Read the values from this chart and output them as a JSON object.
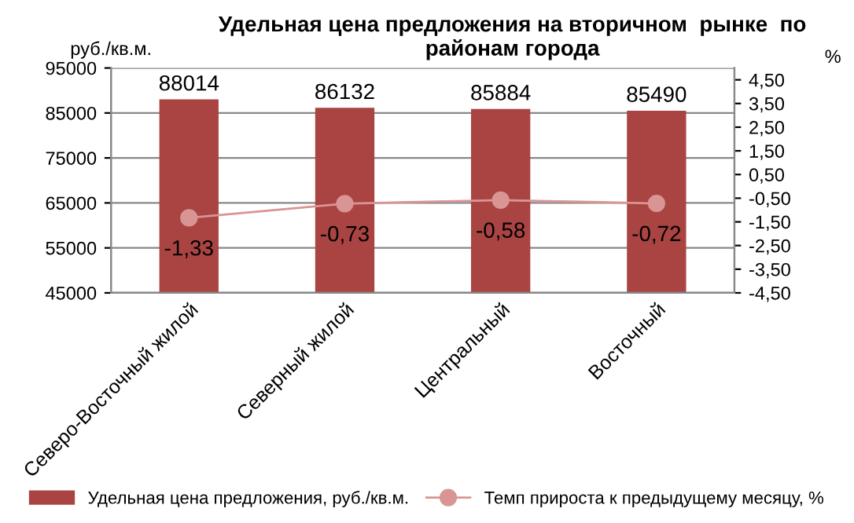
{
  "chart_data": {
    "type": "bar",
    "title": "Удельная цена предложения на вторичном  рынке  по районам города",
    "ylabel": "руб./кв.м.",
    "y2label": "%",
    "categories": [
      "Северо-Восточный жилой",
      "Северный жилой",
      "Центральный",
      "Восточный"
    ],
    "series": [
      {
        "name": "Удельная цена предложения, руб./кв.м.",
        "color": "#a94442",
        "values": [
          88014,
          86132,
          85884,
          85490
        ],
        "value_labels": [
          "88014",
          "86132",
          "85884",
          "85490"
        ]
      },
      {
        "name": "Темп прироста к предыдущему месяцу, %",
        "color": "#d99594",
        "type": "line",
        "axis": "y2",
        "marker": "circle",
        "values": [
          -1.33,
          -0.73,
          -0.58,
          -0.72
        ],
        "value_labels": [
          "-1,33",
          "-0,73",
          "-0,58",
          "-0,72"
        ]
      }
    ],
    "ylim": [
      45000,
      95000
    ],
    "yticks": [
      45000,
      55000,
      65000,
      75000,
      85000,
      95000
    ],
    "y2lim": [
      -4.5,
      5.0
    ],
    "y2ticks": [
      {
        "value": -4.5,
        "label": "-4,50"
      },
      {
        "value": -3.5,
        "label": "-3,50"
      },
      {
        "value": -2.5,
        "label": "-2,50"
      },
      {
        "value": -1.5,
        "label": "-1,50"
      },
      {
        "value": -0.5,
        "label": "-0,50"
      },
      {
        "value": 0.5,
        "label": "0,50"
      },
      {
        "value": 1.5,
        "label": "1,50"
      },
      {
        "value": 2.5,
        "label": "2,50"
      },
      {
        "value": 3.5,
        "label": "3,50"
      },
      {
        "value": 4.5,
        "label": "4,50"
      }
    ],
    "grid": "y",
    "legend": "bottom"
  }
}
